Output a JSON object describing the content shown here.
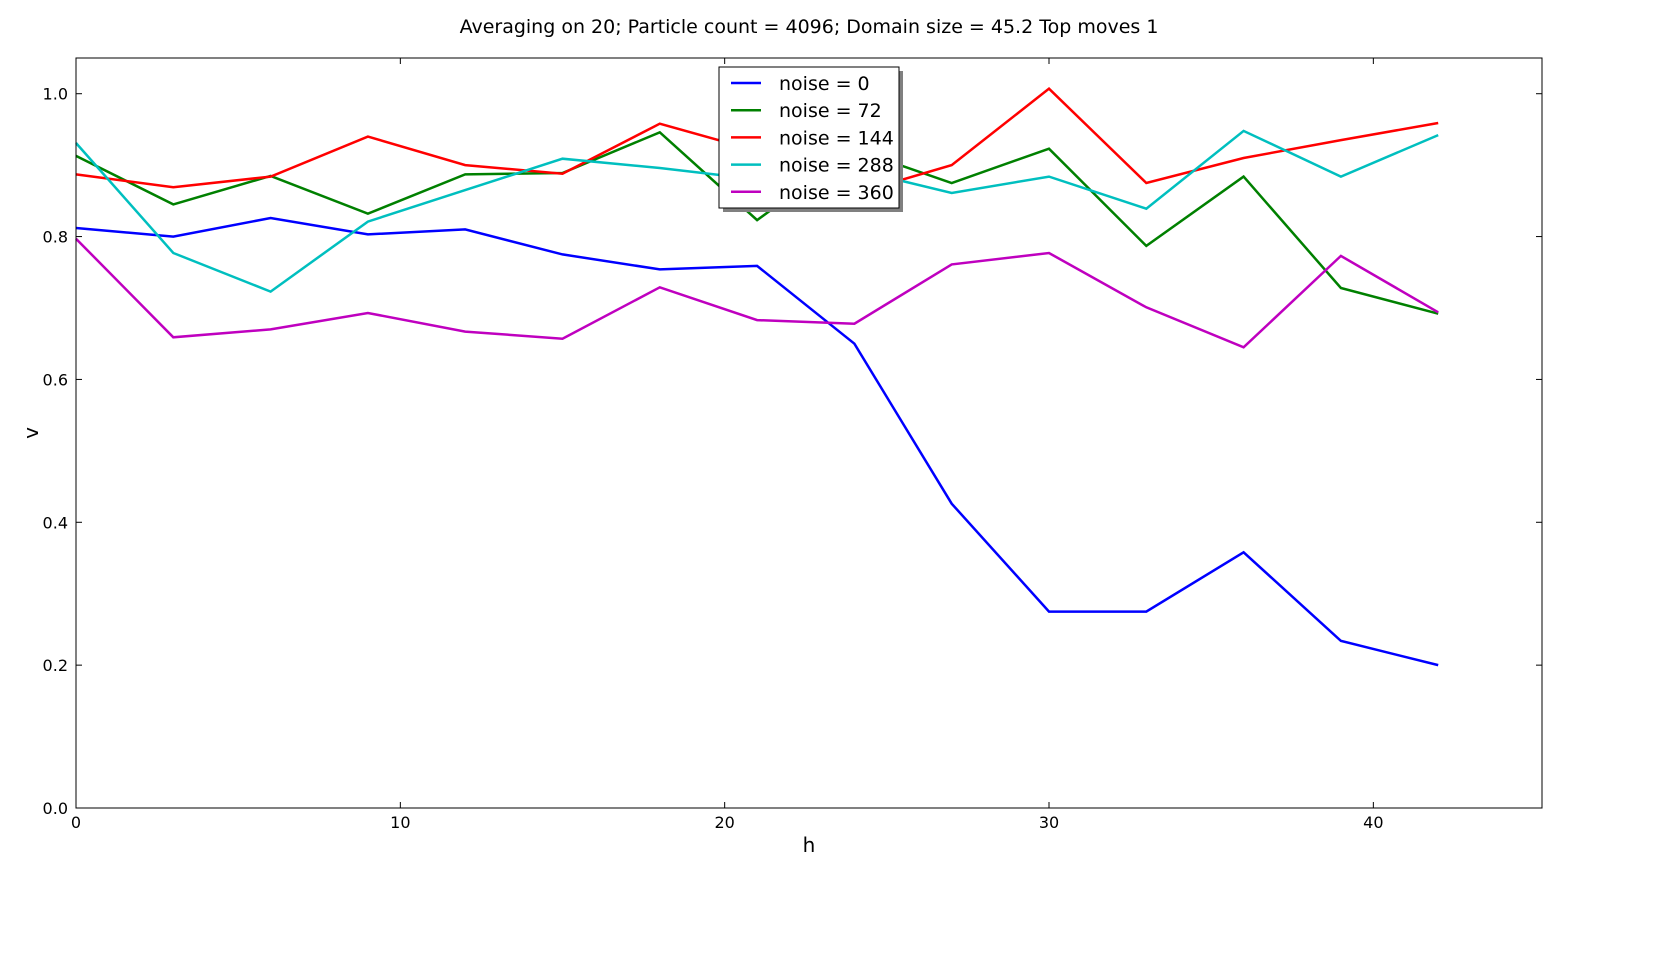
{
  "chart_data": {
    "type": "line",
    "title": "Averaging on 20; Particle count = 4096; Domain size = 45.2 Top moves 1",
    "xlabel": "h",
    "ylabel": "v",
    "xlim": [
      0,
      45.2
    ],
    "ylim": [
      0.0,
      1.05
    ],
    "xticks": [
      0,
      10,
      20,
      30,
      40
    ],
    "yticks": [
      0.0,
      0.2,
      0.4,
      0.6,
      0.8,
      1.0
    ],
    "xtick_labels": [
      "0",
      "10",
      "20",
      "30",
      "40"
    ],
    "ytick_labels": [
      "0.0",
      "0.2",
      "0.4",
      "0.6",
      "0.8",
      "1.0"
    ],
    "grid": false,
    "legend_position": "top-center",
    "x": [
      0,
      3,
      6,
      9,
      12,
      15,
      18,
      21,
      24,
      27,
      30,
      33,
      36,
      39,
      42
    ],
    "series": [
      {
        "name": "noise = 0",
        "color": "#0000ff",
        "values": [
          0.812,
          0.8,
          0.826,
          0.803,
          0.81,
          0.775,
          0.754,
          0.759,
          0.65,
          0.426,
          0.275,
          0.275,
          0.358,
          0.234,
          0.2
        ]
      },
      {
        "name": "noise = 72",
        "color": "#008000",
        "values": [
          0.913,
          0.845,
          0.885,
          0.832,
          0.887,
          0.889,
          0.946,
          0.823,
          0.922,
          0.875,
          0.923,
          0.787,
          0.884,
          0.728,
          0.692
        ]
      },
      {
        "name": "noise = 144",
        "color": "#ff0000",
        "values": [
          0.887,
          0.869,
          0.884,
          0.94,
          0.9,
          0.888,
          0.958,
          0.92,
          0.86,
          0.9,
          1.007,
          0.875,
          0.91,
          0.935,
          0.959
        ]
      },
      {
        "name": "noise = 288",
        "color": "#00bfbf",
        "values": [
          0.931,
          0.777,
          0.723,
          0.821,
          0.865,
          0.909,
          0.896,
          0.88,
          0.894,
          0.861,
          0.884,
          0.839,
          0.948,
          0.884,
          0.942
        ]
      },
      {
        "name": "noise = 360",
        "color": "#bf00bf",
        "values": [
          0.797,
          0.659,
          0.67,
          0.693,
          0.667,
          0.657,
          0.729,
          0.683,
          0.678,
          0.761,
          0.777,
          0.701,
          0.645,
          0.773,
          0.694
        ]
      }
    ]
  }
}
